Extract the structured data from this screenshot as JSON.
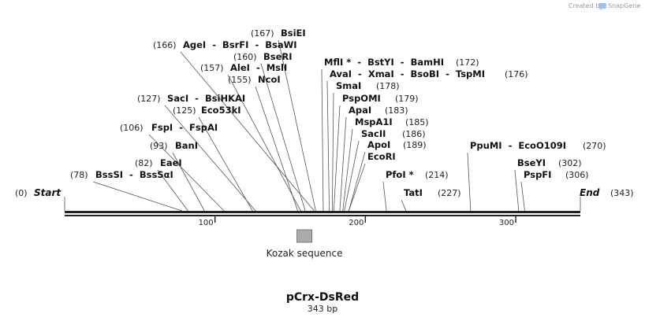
{
  "map": {
    "name": "pCrx-DsRed",
    "length_label": "343 bp",
    "credit": "Created by",
    "brand": "SnapGene",
    "total_bp": 343,
    "backbone_color": "#222222",
    "feature_color": "#a9abaf"
  },
  "axis": {
    "ticks": [
      {
        "bp": 100,
        "label": "100"
      },
      {
        "bp": 200,
        "label": "200"
      },
      {
        "bp": 300,
        "label": "300"
      }
    ]
  },
  "features": [
    {
      "name": "Kozak sequence",
      "start_bp": 155,
      "end_bp": 165
    }
  ],
  "sites": [
    {
      "bp": 0,
      "names": [
        "Start"
      ],
      "pos_label": "(0)",
      "style": "end",
      "side": "left"
    },
    {
      "bp": 343,
      "names": [
        "End"
      ],
      "pos_label": "(343)",
      "style": "end",
      "side": "right"
    },
    {
      "bp": 78,
      "names": [
        "BssSI",
        "BssSαI"
      ],
      "pos_label": "(78)",
      "side": "left"
    },
    {
      "bp": 82,
      "names": [
        "EaeI"
      ],
      "pos_label": "(82)",
      "side": "left"
    },
    {
      "bp": 93,
      "names": [
        "BanI"
      ],
      "pos_label": "(93)",
      "side": "left"
    },
    {
      "bp": 106,
      "names": [
        "FspI",
        "FspAI"
      ],
      "pos_label": "(106)",
      "side": "left"
    },
    {
      "bp": 125,
      "names": [
        "Eco53kI"
      ],
      "pos_label": "(125)",
      "side": "left"
    },
    {
      "bp": 127,
      "names": [
        "SacI",
        "BsiHKAI"
      ],
      "pos_label": "(127)",
      "side": "left"
    },
    {
      "bp": 155,
      "names": [
        "NcoI"
      ],
      "pos_label": "(155)",
      "side": "left"
    },
    {
      "bp": 157,
      "names": [
        "AleI",
        "MslI"
      ],
      "pos_label": "(157)",
      "side": "left"
    },
    {
      "bp": 160,
      "names": [
        "BseRI"
      ],
      "pos_label": "(160)",
      "side": "left"
    },
    {
      "bp": 166,
      "names": [
        "AgeI",
        "BsrFI",
        "BsaWI"
      ],
      "pos_label": "(166)",
      "side": "left"
    },
    {
      "bp": 167,
      "names": [
        "BsiEI"
      ],
      "pos_label": "(167)",
      "side": "left"
    },
    {
      "bp": 172,
      "names": [
        "MflI *",
        "BstYI",
        "BamHI"
      ],
      "pos_label": "(172)",
      "side": "right"
    },
    {
      "bp": 176,
      "names": [
        "AvaI",
        "XmaI",
        "BsoBI",
        "TspMI"
      ],
      "pos_label": "(176)",
      "side": "right"
    },
    {
      "bp": 178,
      "names": [
        "SmaI"
      ],
      "pos_label": "(178)",
      "side": "right"
    },
    {
      "bp": 179,
      "names": [
        "PspOMI"
      ],
      "pos_label": "(179)",
      "side": "right"
    },
    {
      "bp": 183,
      "names": [
        "ApaI"
      ],
      "pos_label": "(183)",
      "side": "right"
    },
    {
      "bp": 185,
      "names": [
        "MspA1I"
      ],
      "pos_label": "(185)",
      "side": "right"
    },
    {
      "bp": 186,
      "names": [
        "SacII"
      ],
      "pos_label": "(186)",
      "side": "right"
    },
    {
      "bp": 189,
      "names": [
        "ApoI"
      ],
      "pos_label": "(189)",
      "side": "right"
    },
    {
      "bp": 189,
      "names": [
        "EcoRI"
      ],
      "pos_label": "",
      "side": "right"
    },
    {
      "bp": 214,
      "names": [
        "PfoI *"
      ],
      "pos_label": "(214)",
      "side": "right"
    },
    {
      "bp": 227,
      "names": [
        "TatI"
      ],
      "pos_label": "(227)",
      "side": "right"
    },
    {
      "bp": 270,
      "names": [
        "PpuMI",
        "EcoO109I"
      ],
      "pos_label": "(270)",
      "side": "right"
    },
    {
      "bp": 302,
      "names": [
        "BseYI"
      ],
      "pos_label": "(302)",
      "side": "right"
    },
    {
      "bp": 306,
      "names": [
        "PspFI"
      ],
      "pos_label": "(306)",
      "side": "right"
    }
  ]
}
